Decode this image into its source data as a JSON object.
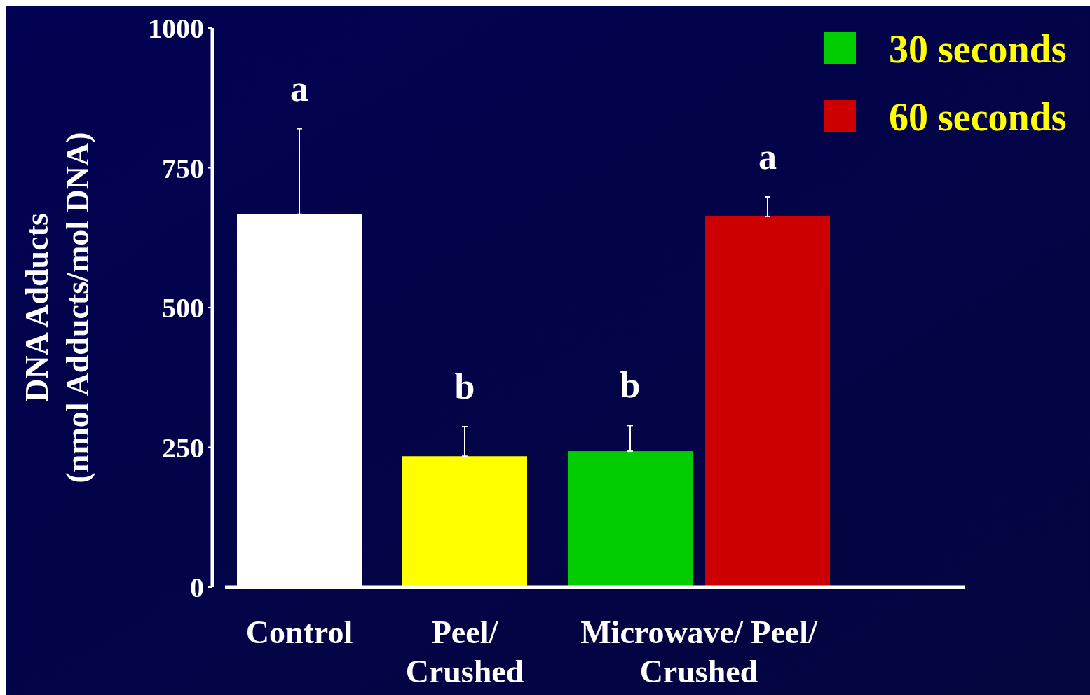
{
  "chart_data": {
    "type": "bar",
    "categories": [
      "Control",
      "Peel/ Crushed",
      "Microwave/ Peel/ Crushed"
    ],
    "ylabel": "DNA Adducts\n(nmol Adducts/mol DNA)",
    "series": [
      {
        "colors": [
          "#ffffff",
          "#ffff00",
          null
        ],
        "values": [
          667,
          234,
          null
        ],
        "errors": [
          [
            667,
            820
          ],
          [
            234,
            287
          ],
          null
        ]
      },
      {
        "name": "30 seconds",
        "color": "#00cc00",
        "values": [
          null,
          null,
          243
        ],
        "errors": [
          null,
          null,
          [
            243,
            289
          ]
        ]
      },
      {
        "name": "60 seconds",
        "color": "#cc0000",
        "values": [
          null,
          null,
          663
        ],
        "errors": [
          null,
          null,
          [
            663,
            698
          ]
        ]
      }
    ],
    "ylim": [
      0,
      1000
    ],
    "yticks": [
      0,
      250,
      500,
      750,
      1000
    ],
    "grid": false,
    "legend": "top right",
    "annotations": [
      "a",
      "b",
      "b",
      "a"
    ]
  }
}
